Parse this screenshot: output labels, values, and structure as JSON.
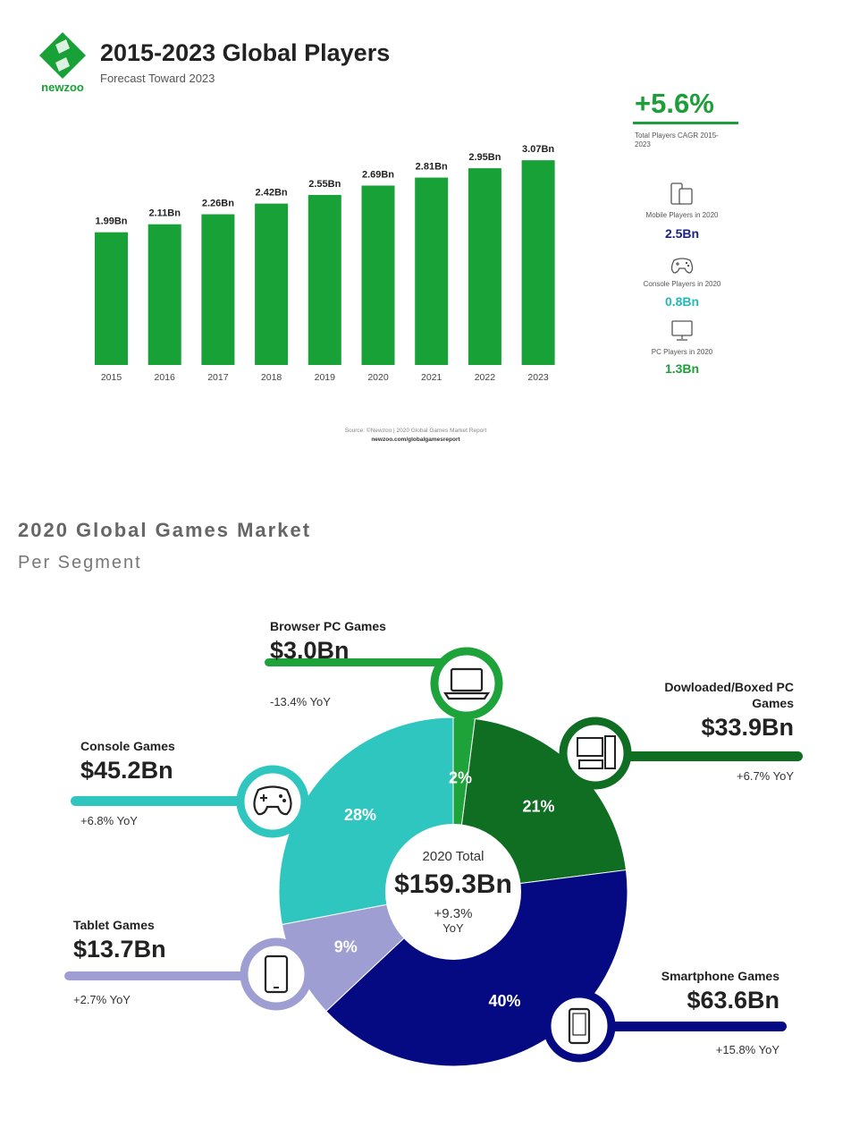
{
  "header": {
    "logo_text": "newzoo",
    "title": "2015-2023 Global Players",
    "subtitle": "Forecast Toward 2023"
  },
  "summary": {
    "cagr_value": "+5.6%",
    "cagr_label": "Total Players CAGR 2015-2023",
    "stats": [
      {
        "label": "Mobile Players in 2020",
        "value": "2.5Bn",
        "icon": "smartphone-tablet-icon",
        "color": "#1a237e"
      },
      {
        "label": "Console Players in 2020",
        "value": "0.8Bn",
        "icon": "gamepad-icon",
        "color": "#26b8b8"
      },
      {
        "label": "PC Players in 2020",
        "value": "1.3Bn",
        "icon": "monitor-icon",
        "color": "#1e9e3a"
      }
    ]
  },
  "source": {
    "line1": "Source: ©Newzoo | 2020 Global Games Market Report",
    "line2": "newzoo.com/globalgamesreport"
  },
  "market": {
    "title": "2020 Global Games Market",
    "subtitle": "Per Segment",
    "center_label": "2020 Total",
    "center_value": "$159.3Bn",
    "center_growth": "+9.3%",
    "center_growth_unit": "YoY",
    "segments": [
      {
        "name": "Browser PC Games",
        "value": "$3.0Bn",
        "yoy": "-13.4% YoY",
        "pct_label": "2%",
        "icon": "laptop-icon"
      },
      {
        "name": "Dowloaded/Boxed PC Games",
        "value": "$33.9Bn",
        "yoy": "+6.7% YoY",
        "pct_label": "21%",
        "icon": "desktop-pc-icon"
      },
      {
        "name": "Smartphone Games",
        "value": "$63.6Bn",
        "yoy": "+15.8% YoY",
        "pct_label": "40%",
        "icon": "smartphone-icon"
      },
      {
        "name": "Tablet Games",
        "value": "$13.7Bn",
        "yoy": "+2.7% YoY",
        "pct_label": "9%",
        "icon": "tablet-icon"
      },
      {
        "name": "Console Games",
        "value": "$45.2Bn",
        "yoy": "+6.8% YoY",
        "pct_label": "28%",
        "icon": "gamepad-icon"
      }
    ]
  },
  "chart_data": [
    {
      "type": "bar",
      "title": "2015-2023 Global Players",
      "subtitle": "Forecast Toward 2023",
      "categories": [
        "2015",
        "2016",
        "2017",
        "2018",
        "2019",
        "2020",
        "2021",
        "2022",
        "2023"
      ],
      "values": [
        1.99,
        2.11,
        2.26,
        2.42,
        2.55,
        2.69,
        2.81,
        2.95,
        3.07
      ],
      "value_labels": [
        "1.99Bn",
        "2.11Bn",
        "2.26Bn",
        "2.42Bn",
        "2.55Bn",
        "2.69Bn",
        "2.81Bn",
        "2.95Bn",
        "3.07Bn"
      ],
      "ylim": [
        0,
        3.3
      ],
      "grid": false,
      "bar_color": "#17a136"
    },
    {
      "type": "pie",
      "title": "2020 Global Games Market",
      "subtitle": "Per Segment",
      "categories": [
        "Browser PC Games",
        "Dowloaded/Boxed PC Games",
        "Smartphone Games",
        "Tablet Games",
        "Console Games"
      ],
      "values": [
        2,
        21,
        40,
        9,
        28
      ],
      "colors": [
        "#1ea23a",
        "#0f6e22",
        "#050a82",
        "#9e9ed2",
        "#2fc6bf"
      ],
      "donut": true
    }
  ]
}
